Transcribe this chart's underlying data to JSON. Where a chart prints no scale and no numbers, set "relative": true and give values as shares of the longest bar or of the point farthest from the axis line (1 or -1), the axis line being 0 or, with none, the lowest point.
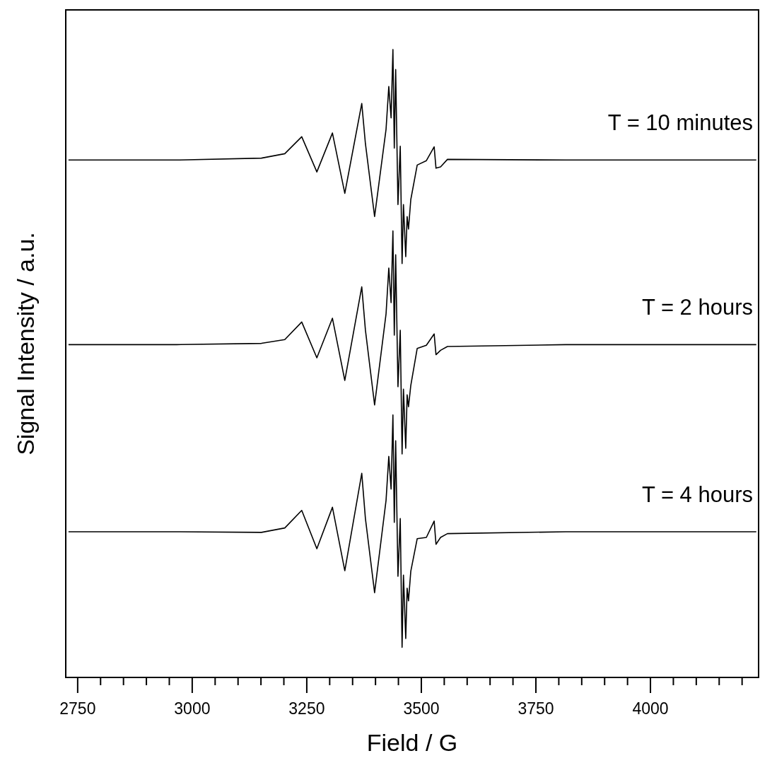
{
  "chart_data": {
    "type": "line",
    "xlabel": "Field / G",
    "ylabel": "Signal Intensity / a.u.",
    "relative": true,
    "xlim": [
      2724,
      4236
    ],
    "xticks": [
      2750,
      {
        "value": 2800,
        "label": null
      },
      {
        "value": 2850,
        "label": null
      },
      {
        "value": 2900,
        "label": null
      },
      {
        "value": 2950,
        "label": null
      },
      3000,
      {
        "value": 3050,
        "label": null
      },
      {
        "value": 3100,
        "label": null
      },
      {
        "value": 3150,
        "label": null
      },
      {
        "value": 3200,
        "label": null
      },
      3250,
      {
        "value": 3300,
        "label": null
      },
      {
        "value": 3350,
        "label": null
      },
      {
        "value": 3400,
        "label": null
      },
      {
        "value": 3450,
        "label": null
      },
      3500,
      {
        "value": 3550,
        "label": null
      },
      {
        "value": 3600,
        "label": null
      },
      {
        "value": 3650,
        "label": null
      },
      {
        "value": 3700,
        "label": null
      },
      3750,
      {
        "value": 3800,
        "label": null
      },
      {
        "value": 3850,
        "label": null
      },
      {
        "value": 3900,
        "label": null
      },
      {
        "value": 3950,
        "label": null
      },
      4000,
      {
        "value": 4050,
        "label": null
      },
      {
        "value": 4100,
        "label": null
      },
      {
        "value": 4150,
        "label": null
      },
      {
        "value": 4200,
        "label": null
      }
    ],
    "x": [
      2730,
      2966,
      3151,
      3202,
      3239,
      3272,
      3306,
      3333,
      3370,
      3378,
      3398,
      3423,
      3429,
      3434,
      3438,
      3441,
      3444,
      3449,
      3454,
      3458,
      3461,
      3466,
      3469,
      3472,
      3477,
      3491,
      3511,
      3528,
      3532,
      3542,
      3557,
      3815,
      4231
    ],
    "grid": false,
    "marker": "none",
    "line_style": "solid",
    "series": [
      {
        "name": "T = 10 minutes",
        "color": "#000000",
        "values": [
          0.824,
          0.824,
          0.827,
          0.834,
          0.861,
          0.805,
          0.867,
          0.771,
          0.914,
          0.85,
          0.734,
          0.873,
          0.941,
          0.891,
          1,
          0.843,
          0.968,
          0.753,
          0.846,
          0.659,
          0.753,
          0.67,
          0.734,
          0.714,
          0.761,
          0.816,
          0.823,
          0.845,
          0.811,
          0.813,
          0.825,
          0.824,
          0.824
        ]
      },
      {
        "name": "T = 2 hours",
        "color": "#000000",
        "values": [
          0.53,
          0.53,
          0.532,
          0.538,
          0.566,
          0.509,
          0.572,
          0.473,
          0.622,
          0.553,
          0.434,
          0.579,
          0.652,
          0.597,
          0.711,
          0.545,
          0.673,
          0.463,
          0.553,
          0.356,
          0.459,
          0.365,
          0.45,
          0.431,
          0.465,
          0.524,
          0.529,
          0.547,
          0.514,
          0.521,
          0.527,
          0.53,
          0.53
        ]
      },
      {
        "name": "T = 4 hours",
        "color": "#000000",
        "values": [
          0.232,
          0.232,
          0.231,
          0.238,
          0.266,
          0.205,
          0.271,
          0.17,
          0.325,
          0.253,
          0.135,
          0.282,
          0.352,
          0.3,
          0.418,
          0.247,
          0.377,
          0.161,
          0.253,
          0.048,
          0.163,
          0.062,
          0.142,
          0.122,
          0.169,
          0.221,
          0.223,
          0.249,
          0.212,
          0.223,
          0.229,
          0.232,
          0.232
        ]
      }
    ]
  }
}
